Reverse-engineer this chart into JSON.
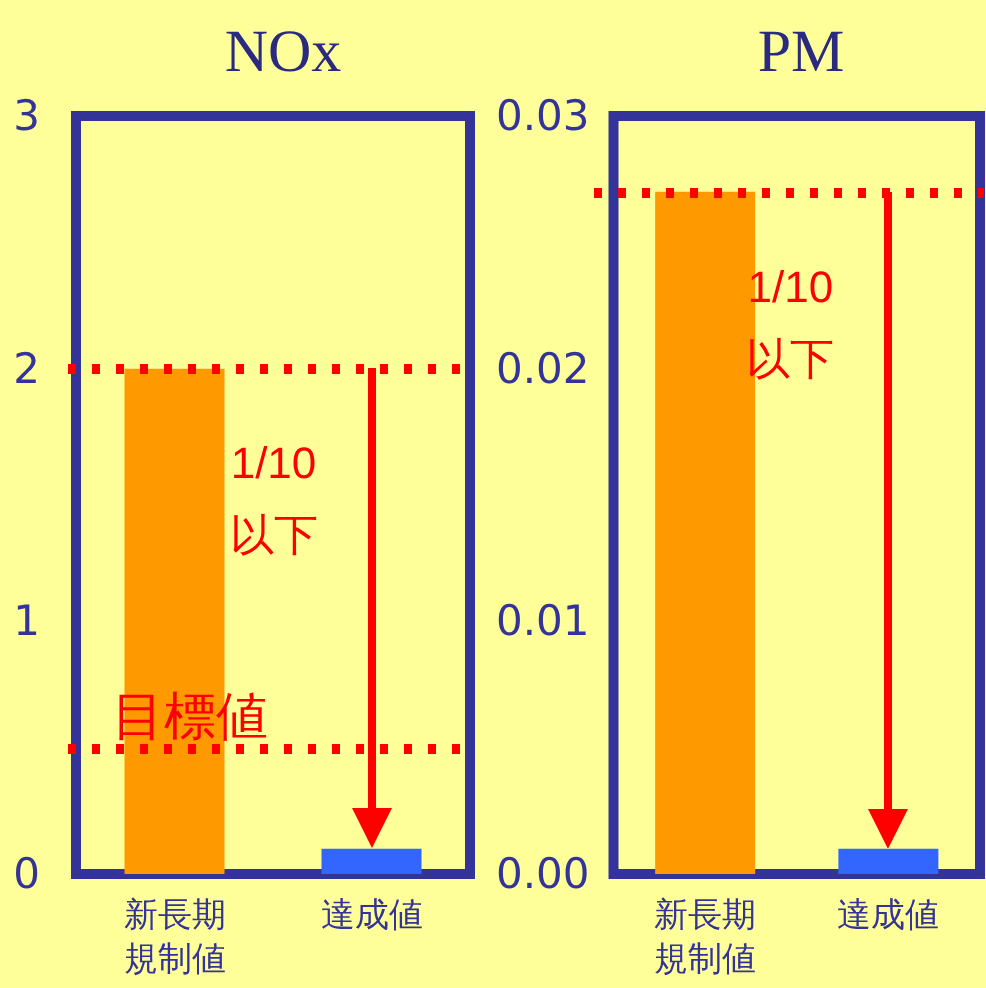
{
  "chart_data": [
    {
      "type": "bar",
      "title": "NOx",
      "categories": [
        "新長期規制値",
        "達成値"
      ],
      "values": [
        2,
        0.1
      ],
      "colors": [
        "#ff9900",
        "#3366ff"
      ],
      "ylim": [
        0,
        3
      ],
      "yticks": [
        0,
        1,
        2,
        3
      ],
      "grid": false,
      "ref_lines": [
        {
          "axis": "y",
          "value": 2,
          "label": null,
          "color": "#ff0000",
          "line_style": "dotted"
        },
        {
          "axis": "y",
          "value": 0.5,
          "label": "目標値",
          "color": "#ff0000",
          "line_style": "dotted"
        }
      ],
      "annotations": [
        "1/10 以下"
      ]
    },
    {
      "type": "bar",
      "title": "PM",
      "categories": [
        "新長期規制値",
        "達成値"
      ],
      "values": [
        0.027,
        0.001
      ],
      "colors": [
        "#ff9900",
        "#3366ff"
      ],
      "ylim": [
        0,
        0.03
      ],
      "yticks": [
        {
          "value": 0,
          "label": "0.00"
        },
        {
          "value": 0.01,
          "label": "0.01"
        },
        {
          "value": 0.02,
          "label": "0.02"
        },
        {
          "value": 0.03,
          "label": "0.03"
        }
      ],
      "grid": false,
      "ref_lines": [
        {
          "axis": "y",
          "value": 0.027,
          "label": null,
          "color": "#ff0000",
          "line_style": "dotted"
        }
      ],
      "annotations": [
        "1/10 以下"
      ]
    }
  ]
}
